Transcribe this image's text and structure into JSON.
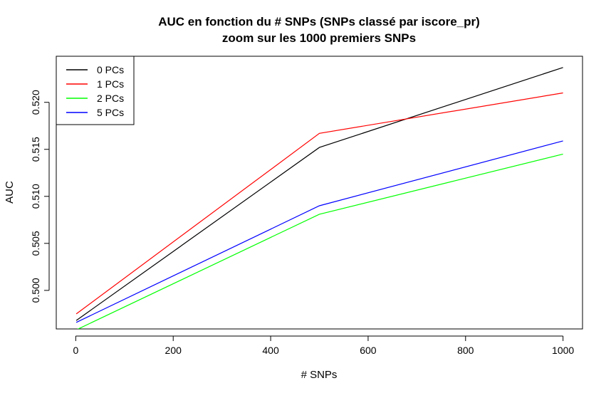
{
  "chart_data": {
    "type": "line",
    "title": "AUC en fonction du # SNPs (SNPs classé par iscore_pr)",
    "subtitle": "zoom sur les 1000 premiers SNPs",
    "xlabel": "# SNPs",
    "ylabel": "AUC",
    "x": [
      1,
      500,
      1000
    ],
    "xlim": [
      -40,
      1040
    ],
    "ylim": [
      0.4959,
      0.5249
    ],
    "xticks": [
      0,
      200,
      400,
      600,
      800,
      1000
    ],
    "xtick_labels": [
      "0",
      "200",
      "400",
      "600",
      "800",
      "1000"
    ],
    "yticks": [
      0.5,
      0.505,
      0.51,
      0.515,
      0.52
    ],
    "ytick_labels": [
      "0.500",
      "0.505",
      "0.510",
      "0.515",
      "0.520"
    ],
    "grid": false,
    "legend_position": "top-left",
    "series": [
      {
        "name": "0 PCs",
        "color": "#000000",
        "values": [
          0.4968,
          0.5152,
          0.5237
        ]
      },
      {
        "name": "1 PCs",
        "color": "#ff0000",
        "values": [
          0.4975,
          0.5167,
          0.521
        ]
      },
      {
        "name": "2 PCs",
        "color": "#00ff00",
        "values": [
          0.4958,
          0.5081,
          0.5145
        ]
      },
      {
        "name": "5 PCs",
        "color": "#0000ff",
        "values": [
          0.4966,
          0.509,
          0.5159
        ]
      }
    ]
  }
}
